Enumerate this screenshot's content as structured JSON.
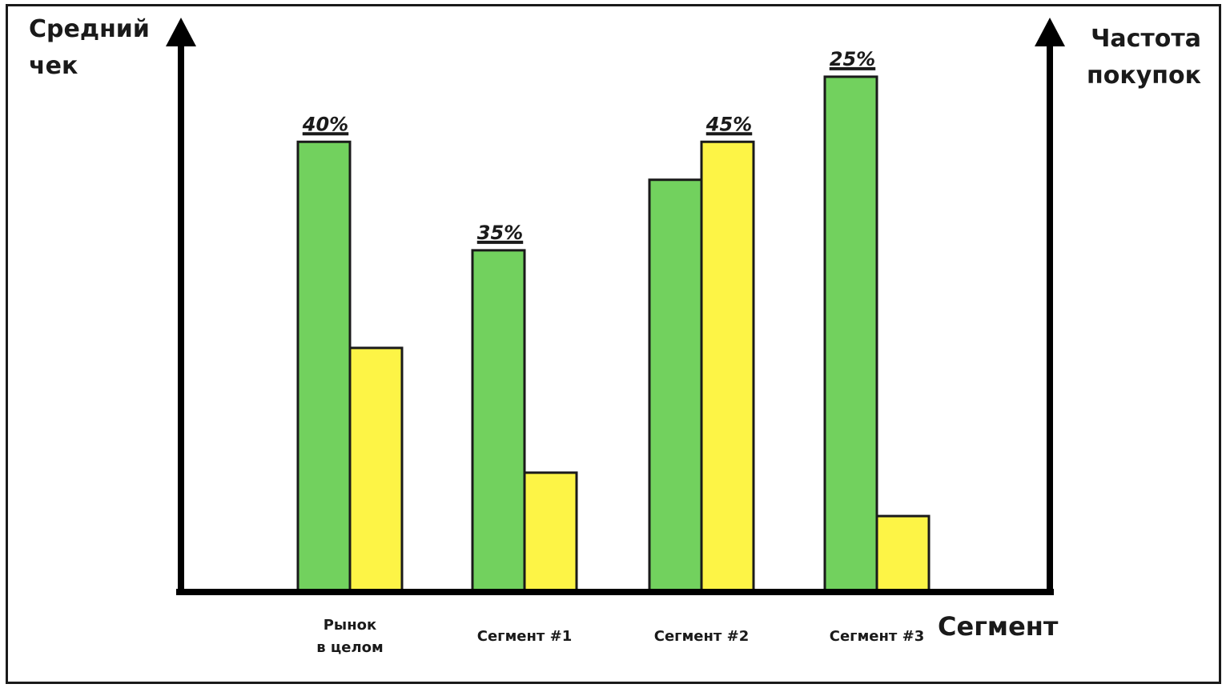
{
  "chart_data": {
    "type": "bar",
    "ylabel_left": [
      "Средний",
      "чек"
    ],
    "ylabel_right": [
      "Частота",
      "покупок"
    ],
    "xlabel": "Сегмент",
    "categories": [
      [
        "Рынок",
        "в целом"
      ],
      [
        "Сегмент #1"
      ],
      [
        "Сегмент #2"
      ],
      [
        "Сегмент #3"
      ]
    ],
    "series": [
      {
        "values": [
          0.83,
          0.63,
          0.76,
          0.95
        ]
      },
      {
        "values": [
          0.45,
          0.22,
          0.83,
          0.14
        ]
      }
    ],
    "data_labels": [
      "40%",
      "35%",
      "45%",
      "25%"
    ],
    "ylim": [
      0,
      1
    ],
    "grid": false,
    "colors": {
      "series": [
        "#72d15e",
        "#fdf446"
      ],
      "stroke": "#1a1a1a",
      "axis": "#000000"
    }
  }
}
